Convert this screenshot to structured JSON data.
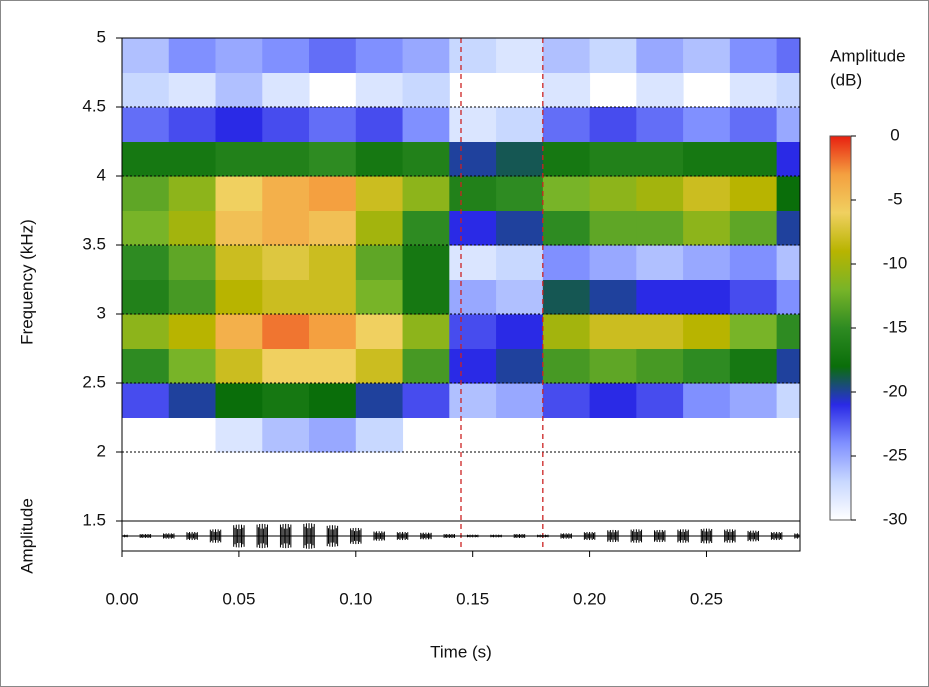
{
  "chart_data": {
    "type": "spectrogram",
    "x_label": "Time (s)",
    "y_label": "Frequency (kHz)",
    "oscillogram_label": "Amplitude",
    "colorbar_title": [
      "Amplitude",
      "(dB)"
    ],
    "xlim": [
      0,
      0.29
    ],
    "xticks": [
      {
        "value": 0,
        "label": "0.00"
      },
      0.05,
      {
        "value": 0.1,
        "label": "0.10"
      },
      0.15,
      {
        "value": 0.2,
        "label": "0.20"
      },
      0.25
    ],
    "ylim": [
      1.5,
      5
    ],
    "yticks": [
      1.5,
      2,
      2.5,
      3,
      3.5,
      4,
      4.5,
      5
    ],
    "grid_yticks": [
      2,
      2.5,
      3,
      3.5,
      4,
      4.5
    ],
    "grid_color": "#000000",
    "zlim": [
      -30,
      0
    ],
    "zticks": [
      0,
      -5,
      -10,
      -15,
      -20,
      -25,
      -30
    ],
    "colormap": [
      "#ffffff",
      "#c8d8ff",
      "#8090ff",
      "#2a2ae6",
      "#0a6e0a",
      "#2e8b22",
      "#78b428",
      "#b8b400",
      "#f0d060",
      "#f4a040",
      "#e82010"
    ],
    "time_edges": [
      0,
      0.02,
      0.04,
      0.06,
      0.08,
      0.1,
      0.12,
      0.14,
      0.16,
      0.18,
      0.2,
      0.22,
      0.24,
      0.26,
      0.28,
      0.29
    ],
    "freq_edges": [
      2,
      2.25,
      2.5,
      2.75,
      3,
      3.25,
      3.5,
      3.75,
      4,
      4.25,
      4.5,
      4.75,
      5
    ],
    "z": [
      [
        null,
        null,
        -28,
        -26,
        -25,
        -27,
        null,
        null,
        null,
        null,
        null,
        null,
        null,
        null,
        null
      ],
      [
        -22,
        -20,
        -18,
        -17,
        -18,
        -20,
        -22,
        -26,
        -25,
        -22,
        -21,
        -22,
        -24,
        -25,
        -27
      ],
      [
        -15,
        -12,
        -8,
        -6,
        -6,
        -8,
        -14,
        -21,
        -20,
        -14,
        -13,
        -14,
        -15,
        -17,
        -20
      ],
      [
        -11,
        -9,
        -4,
        -2,
        -3,
        -6,
        -11,
        -22,
        -21,
        -10,
        -8,
        -8,
        -9,
        -12,
        -15
      ],
      [
        -16,
        -14,
        -9,
        -8,
        -8,
        -12,
        -17,
        -25,
        -26,
        -19,
        -20,
        -21,
        -21,
        -22,
        -24
      ],
      [
        -15,
        -13,
        -8,
        -7,
        -8,
        -13,
        -17,
        -28,
        -27,
        -24,
        -25,
        -26,
        -25,
        -24,
        -26
      ],
      [
        -12,
        -10,
        -5,
        -4,
        -5,
        -10,
        -15,
        -21,
        -20,
        -15,
        -13,
        -13,
        -11,
        -13,
        -20
      ],
      [
        -13,
        -11,
        -6,
        -4,
        -3,
        -8,
        -11,
        -16,
        -15,
        -12,
        -11,
        -10,
        -8,
        -9,
        -18
      ],
      [
        -17,
        -17,
        -16,
        -16,
        -15,
        -17,
        -16,
        -20,
        -19,
        -17,
        -16,
        -16,
        -17,
        -17,
        -21
      ],
      [
        -23,
        -22,
        -21,
        -22,
        -23,
        -22,
        -24,
        -28,
        -27,
        -23,
        -22,
        -23,
        -24,
        -23,
        -25
      ],
      [
        -27,
        -28,
        -26,
        -28,
        null,
        -28,
        -27,
        null,
        null,
        -28,
        null,
        -28,
        null,
        -28,
        -27
      ],
      [
        -26,
        -24,
        -25,
        -24,
        -23,
        -24,
        -25,
        -27,
        -28,
        -26,
        -27,
        -25,
        -26,
        -24,
        -23
      ]
    ],
    "vlines": [
      0.145,
      0.18
    ],
    "vline_color": "#cc2222",
    "oscillogram": {
      "ylim": [
        -1,
        1
      ],
      "color": "#000000",
      "x": [
        0,
        0.01,
        0.02,
        0.03,
        0.04,
        0.05,
        0.06,
        0.07,
        0.08,
        0.09,
        0.1,
        0.11,
        0.12,
        0.13,
        0.14,
        0.15,
        0.16,
        0.17,
        0.18,
        0.19,
        0.2,
        0.21,
        0.22,
        0.23,
        0.24,
        0.25,
        0.26,
        0.27,
        0.28,
        0.29
      ],
      "envelope": [
        0.1,
        0.15,
        0.2,
        0.3,
        0.5,
        0.85,
        0.9,
        0.9,
        0.95,
        0.8,
        0.6,
        0.35,
        0.3,
        0.25,
        0.15,
        0.1,
        0.1,
        0.15,
        0.1,
        0.2,
        0.3,
        0.45,
        0.5,
        0.45,
        0.5,
        0.55,
        0.5,
        0.4,
        0.3,
        0.2
      ]
    }
  }
}
